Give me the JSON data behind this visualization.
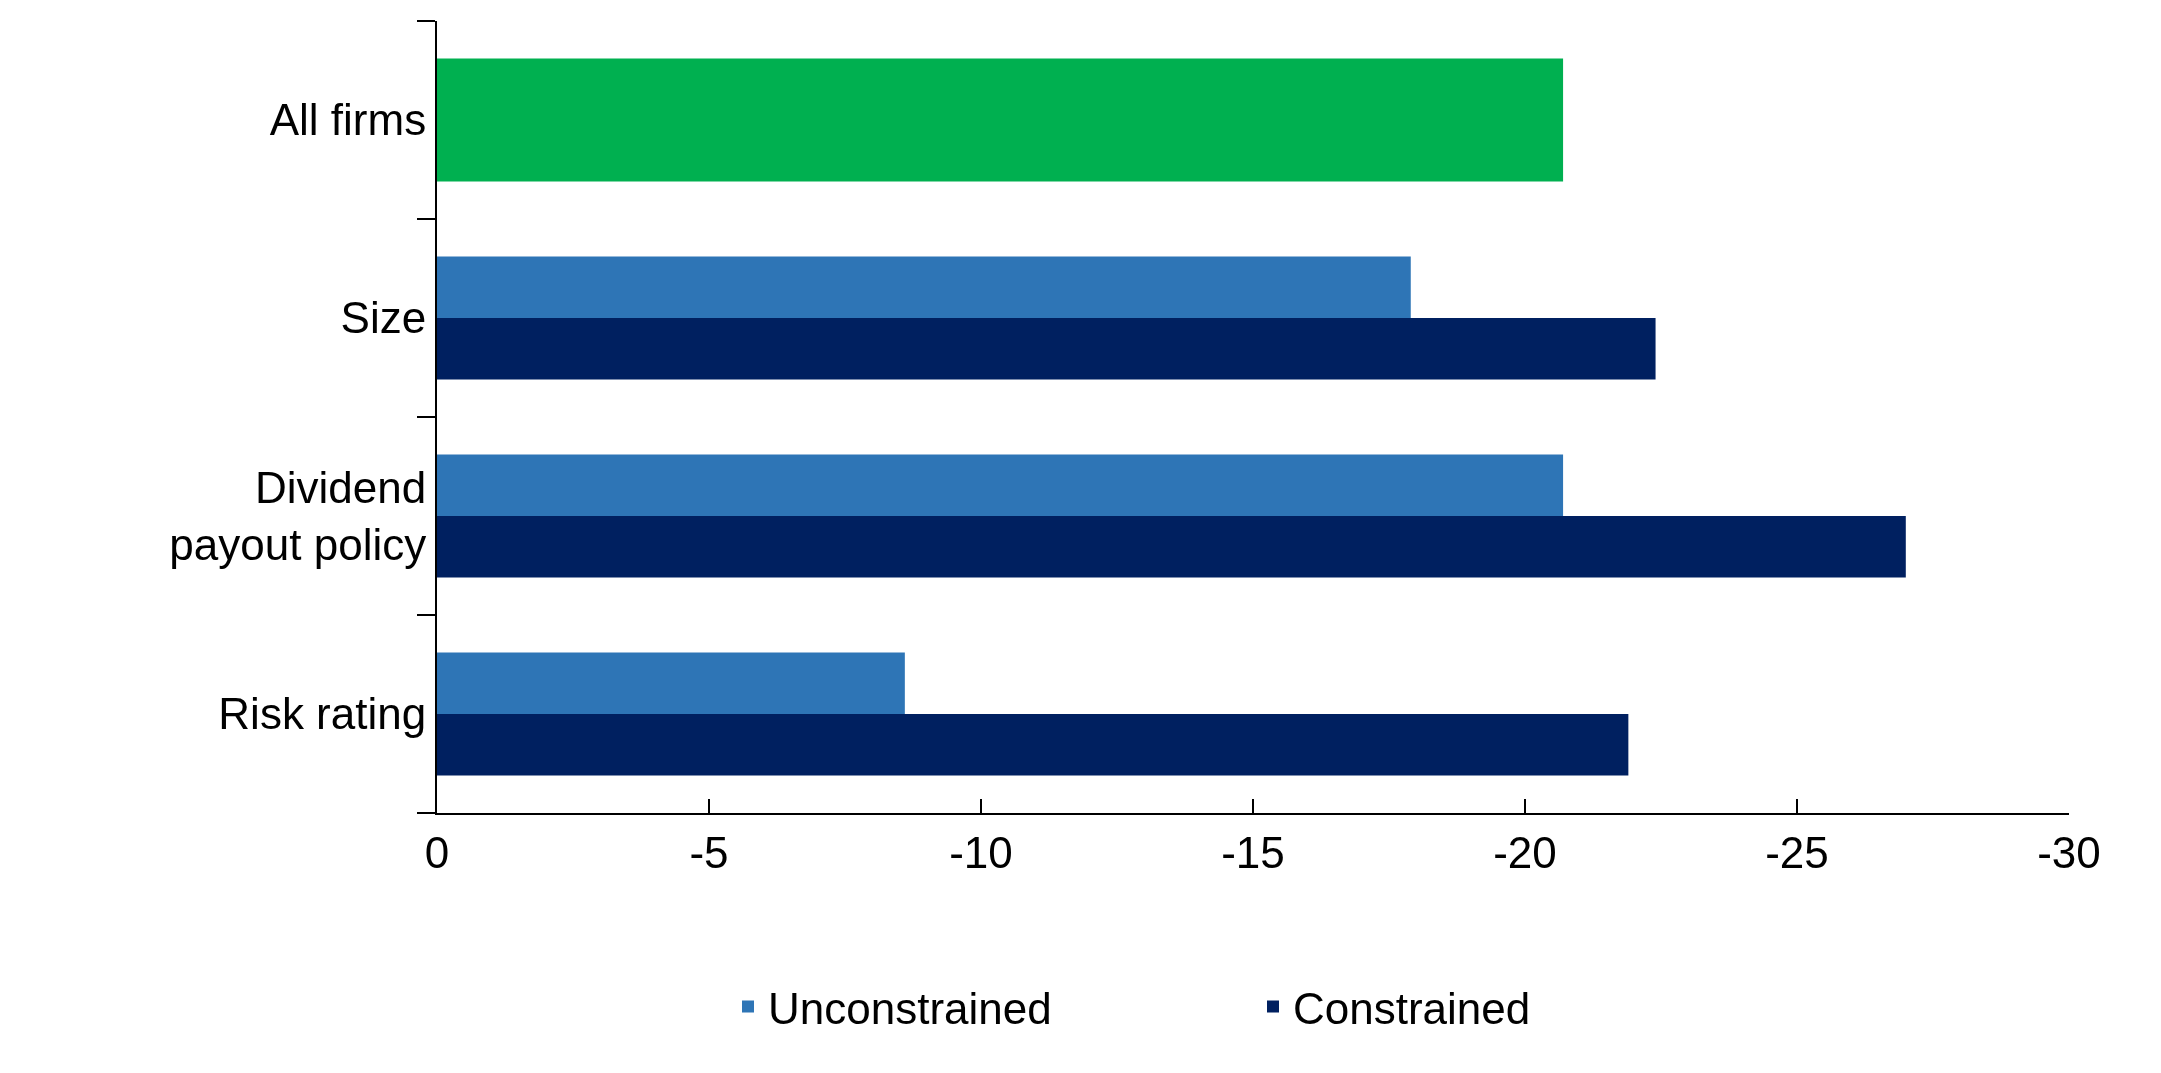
{
  "chart_data": {
    "type": "bar",
    "orientation": "horizontal",
    "categories": [
      "All firms",
      "Size",
      "Dividend payout policy",
      "Risk rating"
    ],
    "series": [
      {
        "color": "#00b050",
        "values": [
          -20.7,
          null,
          null,
          null
        ]
      },
      {
        "name": "Unconstrained",
        "color": "#2e75b6",
        "values": [
          null,
          -17.9,
          -20.7,
          -8.6
        ]
      },
      {
        "name": "Constrained",
        "color": "#002060",
        "values": [
          null,
          -22.4,
          -27.0,
          -21.9
        ]
      }
    ],
    "xlim": [
      0,
      -30
    ],
    "xticks": [
      0,
      -5,
      -10,
      -15,
      -20,
      -25,
      -30
    ],
    "legend": "bottom"
  }
}
